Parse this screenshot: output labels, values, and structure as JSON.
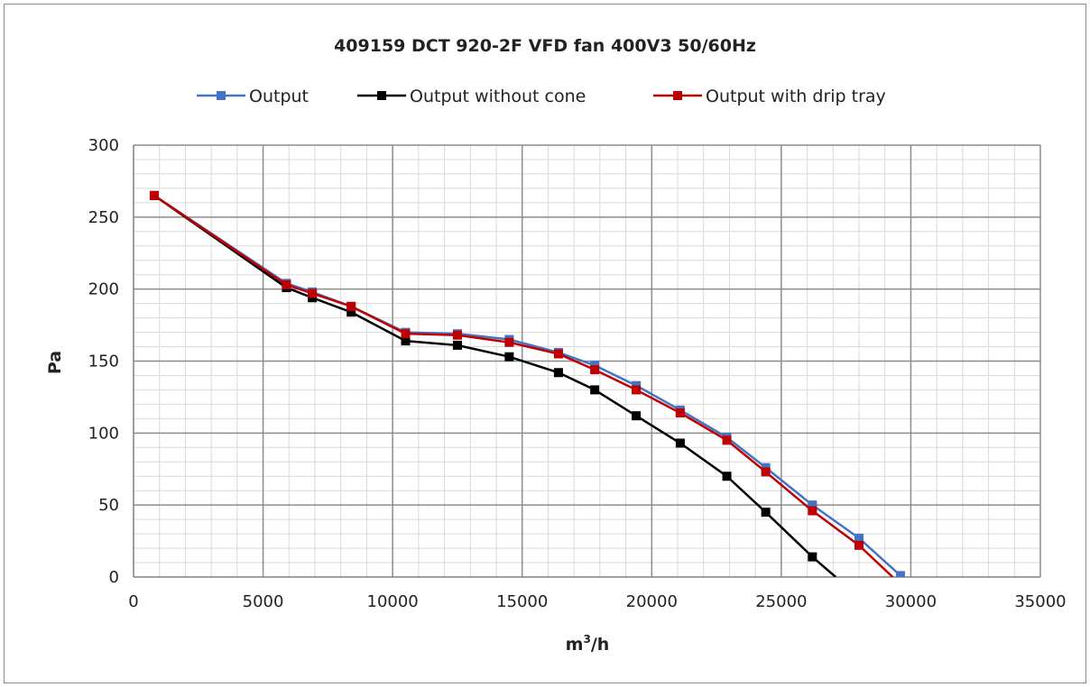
{
  "chart_data": {
    "type": "line",
    "title": "409159 DCT 920-2F VFD fan 400V3 50/60Hz",
    "xlabel_base": "m",
    "xlabel_sup": "3",
    "xlabel_tail": "/h",
    "ylabel": "Pa",
    "xlim": [
      0,
      35000
    ],
    "ylim": [
      0,
      300
    ],
    "x_major_step": 5000,
    "x_minor_step": 1000,
    "y_major_step": 50,
    "y_minor_step": 10,
    "x_ticks": [
      "0",
      "5000",
      "10000",
      "15000",
      "20000",
      "25000",
      "30000",
      "35000"
    ],
    "y_ticks": [
      "0",
      "50",
      "100",
      "150",
      "200",
      "250",
      "300"
    ],
    "grid": true,
    "legend_position": "top",
    "series": [
      {
        "name": "Output",
        "color": "#4472c4",
        "points": [
          [
            800,
            265
          ],
          [
            5900,
            204
          ],
          [
            6900,
            198
          ],
          [
            8400,
            188
          ],
          [
            10500,
            170
          ],
          [
            12500,
            169
          ],
          [
            14500,
            165
          ],
          [
            16400,
            156
          ],
          [
            17800,
            147
          ],
          [
            19400,
            133
          ],
          [
            21100,
            116
          ],
          [
            22900,
            97
          ],
          [
            24400,
            76
          ],
          [
            26200,
            50
          ],
          [
            28000,
            27
          ],
          [
            29600,
            1
          ]
        ]
      },
      {
        "name": "Output without cone",
        "color": "#000000",
        "points": [
          [
            800,
            265
          ],
          [
            5900,
            201
          ],
          [
            6900,
            194
          ],
          [
            8400,
            184
          ],
          [
            10500,
            164
          ],
          [
            12500,
            161
          ],
          [
            14500,
            153
          ],
          [
            16400,
            142
          ],
          [
            17800,
            130
          ],
          [
            19400,
            112
          ],
          [
            21100,
            93
          ],
          [
            22900,
            70
          ],
          [
            24400,
            45
          ],
          [
            26200,
            14
          ],
          [
            27100,
            0
          ]
        ]
      },
      {
        "name": "Output with drip tray",
        "color": "#c00000",
        "points": [
          [
            800,
            265
          ],
          [
            5900,
            203
          ],
          [
            6900,
            197
          ],
          [
            8400,
            188
          ],
          [
            10500,
            169
          ],
          [
            12500,
            168
          ],
          [
            14500,
            163
          ],
          [
            16400,
            155
          ],
          [
            17800,
            144
          ],
          [
            19400,
            130
          ],
          [
            21100,
            114
          ],
          [
            22900,
            95
          ],
          [
            24400,
            73
          ],
          [
            26200,
            46
          ],
          [
            28000,
            22
          ],
          [
            29300,
            0
          ]
        ]
      }
    ]
  }
}
